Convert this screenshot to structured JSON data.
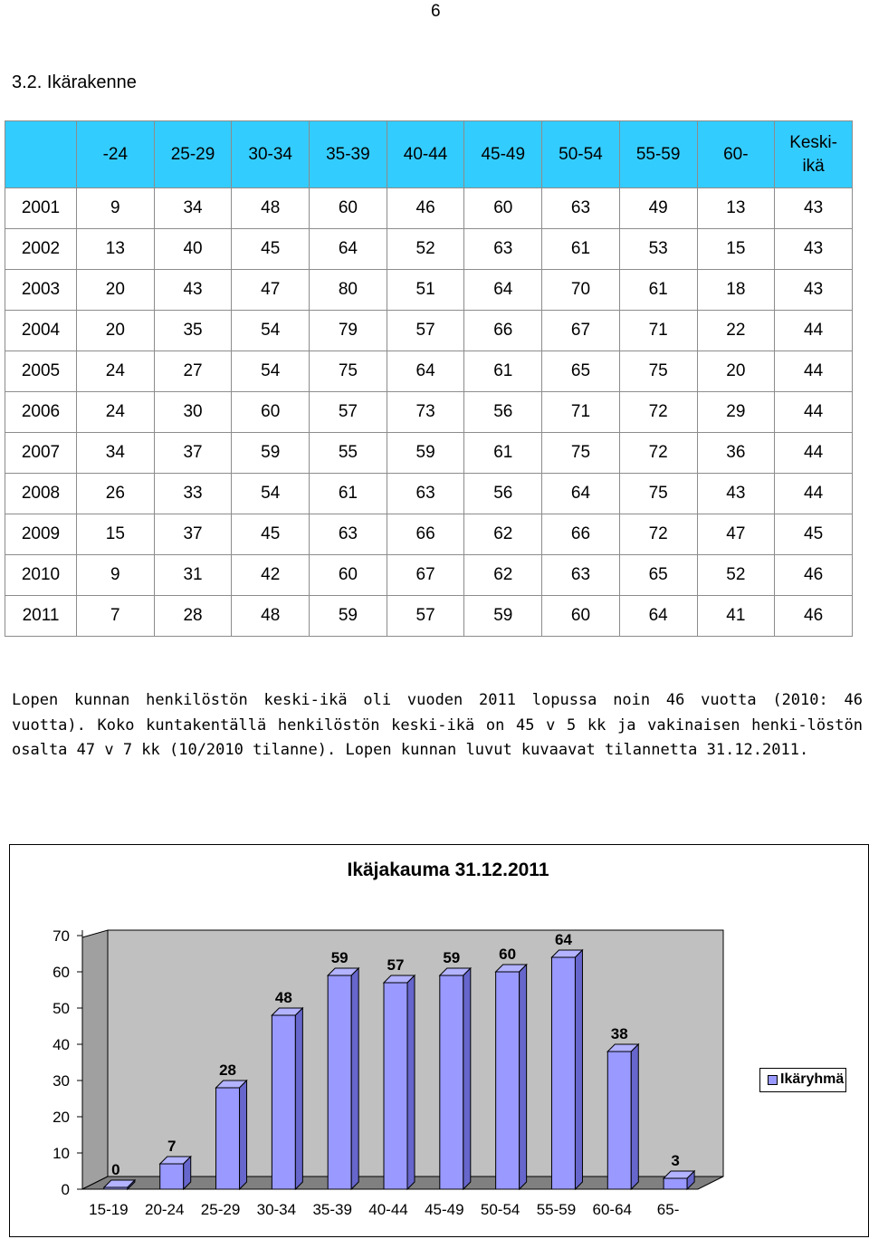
{
  "page_number": "6",
  "section_title": "3.2. Ikärakenne",
  "table": {
    "headers": [
      "",
      "-24",
      "25-29",
      "30-34",
      "35-39",
      "40-44",
      "45-49",
      "50-54",
      "55-59",
      "60-",
      "Keski-\nikä"
    ],
    "rows": [
      [
        "2001",
        "9",
        "34",
        "48",
        "60",
        "46",
        "60",
        "63",
        "49",
        "13",
        "43"
      ],
      [
        "2002",
        "13",
        "40",
        "45",
        "64",
        "52",
        "63",
        "61",
        "53",
        "15",
        "43"
      ],
      [
        "2003",
        "20",
        "43",
        "47",
        "80",
        "51",
        "64",
        "70",
        "61",
        "18",
        "43"
      ],
      [
        "2004",
        "20",
        "35",
        "54",
        "79",
        "57",
        "66",
        "67",
        "71",
        "22",
        "44"
      ],
      [
        "2005",
        "24",
        "27",
        "54",
        "75",
        "64",
        "61",
        "65",
        "75",
        "20",
        "44"
      ],
      [
        "2006",
        "24",
        "30",
        "60",
        "57",
        "73",
        "56",
        "71",
        "72",
        "29",
        "44"
      ],
      [
        "2007",
        "34",
        "37",
        "59",
        "55",
        "59",
        "61",
        "75",
        "72",
        "36",
        "44"
      ],
      [
        "2008",
        "26",
        "33",
        "54",
        "61",
        "63",
        "56",
        "64",
        "75",
        "43",
        "44"
      ],
      [
        "2009",
        "15",
        "37",
        "45",
        "63",
        "66",
        "62",
        "66",
        "72",
        "47",
        "45"
      ],
      [
        "2010",
        "9",
        "31",
        "42",
        "60",
        "67",
        "62",
        "63",
        "65",
        "52",
        "46"
      ],
      [
        "2011",
        "7",
        "28",
        "48",
        "59",
        "57",
        "59",
        "60",
        "64",
        "41",
        "46"
      ]
    ]
  },
  "paragraph": "Lopen kunnan henkilöstön keski-ikä oli vuoden 2011 lopussa noin 46 vuotta (2010: 46 vuotta). Koko kuntakentällä henkilöstön keski-ikä on 45 v 5 kk ja vakinaisen henki-löstön osalta 47 v 7 kk (10/2010 tilanne). Lopen kunnan luvut kuvaavat tilannetta 31.12.2011.",
  "chart_data": {
    "type": "bar",
    "title": "Ikäjakauma 31.12.2011",
    "categories": [
      "15-19",
      "20-24",
      "25-29",
      "30-34",
      "35-39",
      "40-44",
      "45-49",
      "50-54",
      "55-59",
      "60-64",
      "65-"
    ],
    "series": [
      {
        "name": "Ikäryhmä",
        "values": [
          0,
          7,
          28,
          48,
          59,
          57,
          59,
          60,
          64,
          38,
          3
        ]
      }
    ],
    "yticks": [
      "0",
      "10",
      "20",
      "30",
      "40",
      "50",
      "60",
      "70"
    ],
    "ylim": [
      0,
      70
    ],
    "grid": false,
    "legend_position": "right",
    "colors": {
      "bar_front": "#9999ff",
      "bar_top": "#b3b3ff",
      "bar_side": "#6666cc",
      "wall": "#c0c0c0",
      "floor": "#808080"
    }
  }
}
